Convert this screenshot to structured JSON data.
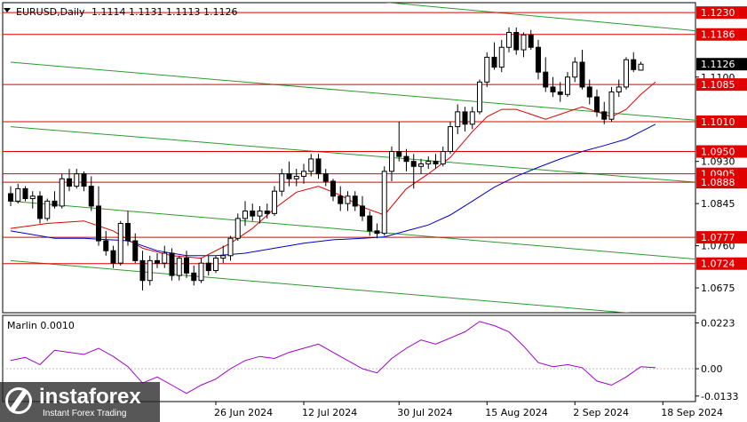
{
  "chart_data": {
    "type": "candlestick",
    "symbol": "EURUSD,Daily",
    "ohlc_values": "1.1114 1.1131 1.1113 1.1126",
    "price_axis": {
      "range": [
        1.0625,
        1.125
      ],
      "ticks": [
        "1.0675",
        "1.0760",
        "1.0845",
        "1.0930",
        "1.1100"
      ]
    },
    "levels": [
      {
        "value": 1.123,
        "label": "1.1230"
      },
      {
        "value": 1.1186,
        "label": "1.1186"
      },
      {
        "value": 1.1085,
        "label": "1.1085"
      },
      {
        "value": 1.101,
        "label": "1.1010"
      },
      {
        "value": 1.095,
        "label": "1.0950"
      },
      {
        "value": 1.0905,
        "label": "1.0905"
      },
      {
        "value": 1.0888,
        "label": "1.0888"
      },
      {
        "value": 1.0777,
        "label": "1.0777"
      },
      {
        "value": 1.0724,
        "label": "1.0724"
      }
    ],
    "current_price": {
      "value": 1.1126,
      "label": "1.1126"
    },
    "x_labels": [
      "26 Jun 2024",
      "12 Jul 2024",
      "30 Jul 2024",
      "15 Aug 2024",
      "2 Sep 2024",
      "18 Sep 2024"
    ],
    "x_label_bars": [
      28,
      40,
      53,
      65,
      77,
      89
    ],
    "candles": [
      [
        1.0865,
        1.088,
        1.084,
        1.085
      ],
      [
        1.085,
        1.0885,
        1.0845,
        1.0875
      ],
      [
        1.0875,
        1.088,
        1.085,
        1.0855
      ],
      [
        1.0855,
        1.087,
        1.0835,
        1.086
      ],
      [
        1.086,
        1.087,
        1.0805,
        1.0815
      ],
      [
        1.0815,
        1.0855,
        1.081,
        1.085
      ],
      [
        1.085,
        1.087,
        1.0835,
        1.084
      ],
      [
        1.084,
        1.0905,
        1.0835,
        1.0895
      ],
      [
        1.0895,
        1.0915,
        1.087,
        1.088
      ],
      [
        1.088,
        1.0915,
        1.0875,
        1.0905
      ],
      [
        1.0905,
        1.091,
        1.087,
        1.088
      ],
      [
        1.088,
        1.09,
        1.083,
        1.084
      ],
      [
        1.084,
        1.088,
        1.076,
        1.077
      ],
      [
        1.077,
        1.079,
        1.074,
        1.075
      ],
      [
        1.075,
        1.076,
        1.0715,
        1.0725
      ],
      [
        1.0725,
        1.081,
        1.072,
        1.0805
      ],
      [
        1.0805,
        1.083,
        1.076,
        1.077
      ],
      [
        1.077,
        1.0785,
        1.0725,
        1.073
      ],
      [
        1.073,
        1.075,
        1.067,
        1.069
      ],
      [
        1.069,
        1.074,
        1.068,
        1.073
      ],
      [
        1.073,
        1.0745,
        1.0715,
        1.0725
      ],
      [
        1.0725,
        1.076,
        1.0715,
        1.0745
      ],
      [
        1.0745,
        1.0755,
        1.069,
        1.07
      ],
      [
        1.07,
        1.074,
        1.069,
        1.0735
      ],
      [
        1.0735,
        1.075,
        1.0695,
        1.0705
      ],
      [
        1.0705,
        1.072,
        1.068,
        1.069
      ],
      [
        1.069,
        1.0735,
        1.0685,
        1.0725
      ],
      [
        1.0725,
        1.074,
        1.07,
        1.071
      ],
      [
        1.071,
        1.074,
        1.0705,
        1.0735
      ],
      [
        1.0735,
        1.076,
        1.0725,
        1.074
      ],
      [
        1.074,
        1.078,
        1.073,
        1.0775
      ],
      [
        1.0775,
        1.0825,
        1.077,
        1.0815
      ],
      [
        1.0815,
        1.085,
        1.08,
        1.083
      ],
      [
        1.083,
        1.0845,
        1.081,
        1.082
      ],
      [
        1.082,
        1.084,
        1.0805,
        1.083
      ],
      [
        1.083,
        1.0845,
        1.0815,
        1.0825
      ],
      [
        1.0825,
        1.088,
        1.082,
        1.087
      ],
      [
        1.087,
        1.0915,
        1.086,
        1.0905
      ],
      [
        1.0905,
        1.093,
        1.088,
        1.0895
      ],
      [
        1.0895,
        1.0915,
        1.088,
        1.09
      ],
      [
        1.09,
        1.0925,
        1.0885,
        1.091
      ],
      [
        1.091,
        1.0945,
        1.09,
        1.0935
      ],
      [
        1.0935,
        1.0945,
        1.0895,
        1.0905
      ],
      [
        1.0905,
        1.0915,
        1.088,
        1.089
      ],
      [
        1.089,
        1.0895,
        1.085,
        1.086
      ],
      [
        1.086,
        1.088,
        1.083,
        1.0845
      ],
      [
        1.0845,
        1.087,
        1.083,
        1.086
      ],
      [
        1.086,
        1.087,
        1.083,
        1.084
      ],
      [
        1.084,
        1.086,
        1.081,
        1.082
      ],
      [
        1.082,
        1.083,
        1.078,
        1.079
      ],
      [
        1.079,
        1.0805,
        1.0775,
        1.0785
      ],
      [
        1.0785,
        1.092,
        1.078,
        1.091
      ],
      [
        1.091,
        1.096,
        1.089,
        1.095
      ],
      [
        1.095,
        1.101,
        1.093,
        1.094
      ],
      [
        1.094,
        1.0955,
        1.091,
        1.093
      ],
      [
        1.093,
        1.0945,
        1.0875,
        1.092
      ],
      [
        1.092,
        1.0935,
        1.0905,
        1.0925
      ],
      [
        1.0925,
        1.094,
        1.0915,
        1.093
      ],
      [
        1.093,
        1.0945,
        1.0915,
        1.0925
      ],
      [
        1.0925,
        1.096,
        1.092,
        1.095
      ],
      [
        1.095,
        1.101,
        1.0945,
        1.1
      ],
      [
        1.1,
        1.1045,
        1.0985,
        1.103
      ],
      [
        1.103,
        1.104,
        1.099,
        1.1005
      ],
      [
        1.1005,
        1.104,
        1.0995,
        1.103
      ],
      [
        1.103,
        1.1095,
        1.1025,
        1.109
      ],
      [
        1.109,
        1.115,
        1.108,
        1.114
      ],
      [
        1.114,
        1.117,
        1.1115,
        1.112
      ],
      [
        1.112,
        1.1175,
        1.111,
        1.116
      ],
      [
        1.116,
        1.12,
        1.115,
        1.119
      ],
      [
        1.119,
        1.12,
        1.1145,
        1.1155
      ],
      [
        1.1155,
        1.119,
        1.114,
        1.1185
      ],
      [
        1.1185,
        1.1195,
        1.1155,
        1.116
      ],
      [
        1.116,
        1.1175,
        1.1095,
        1.111
      ],
      [
        1.111,
        1.114,
        1.107,
        1.108
      ],
      [
        1.108,
        1.11,
        1.106,
        1.107
      ],
      [
        1.107,
        1.109,
        1.105,
        1.1065
      ],
      [
        1.1065,
        1.111,
        1.106,
        1.11
      ],
      [
        1.11,
        1.114,
        1.109,
        1.113
      ],
      [
        1.113,
        1.1155,
        1.1075,
        1.108
      ],
      [
        1.108,
        1.1095,
        1.1045,
        1.106
      ],
      [
        1.106,
        1.1075,
        1.102,
        1.103
      ],
      [
        1.103,
        1.105,
        1.1005,
        1.1015
      ],
      [
        1.1015,
        1.108,
        1.101,
        1.107
      ],
      [
        1.107,
        1.1095,
        1.106,
        1.108
      ],
      [
        1.108,
        1.114,
        1.1075,
        1.1135
      ],
      [
        1.1135,
        1.115,
        1.111,
        1.1115
      ],
      [
        1.1114,
        1.1131,
        1.1113,
        1.1126
      ]
    ],
    "ma_fast": [
      [
        0,
        1.0795
      ],
      [
        5,
        1.0805
      ],
      [
        10,
        1.081
      ],
      [
        14,
        1.079
      ],
      [
        18,
        1.0755
      ],
      [
        22,
        1.074
      ],
      [
        26,
        1.0735
      ],
      [
        30,
        1.0765
      ],
      [
        33,
        1.0795
      ],
      [
        36,
        1.0835
      ],
      [
        39,
        1.0868
      ],
      [
        42,
        1.088
      ],
      [
        45,
        1.0862
      ],
      [
        48,
        1.0838
      ],
      [
        51,
        1.0822
      ],
      [
        54,
        1.0875
      ],
      [
        57,
        1.0905
      ],
      [
        60,
        1.0938
      ],
      [
        63,
        1.099
      ],
      [
        65,
        1.102
      ],
      [
        67,
        1.1035
      ],
      [
        69,
        1.1035
      ],
      [
        71,
        1.1025
      ],
      [
        73,
        1.1015
      ],
      [
        76,
        1.103
      ],
      [
        78,
        1.104
      ],
      [
        80,
        1.103
      ],
      [
        82,
        1.102
      ],
      [
        84,
        1.1035
      ],
      [
        86,
        1.1065
      ],
      [
        88,
        1.109
      ]
    ],
    "ma_slow": [
      [
        0,
        1.079
      ],
      [
        6,
        1.0775
      ],
      [
        10,
        1.0775
      ],
      [
        16,
        1.077
      ],
      [
        20,
        1.075
      ],
      [
        24,
        1.074
      ],
      [
        28,
        1.074
      ],
      [
        32,
        1.0745
      ],
      [
        36,
        1.0755
      ],
      [
        40,
        1.0765
      ],
      [
        44,
        1.0772
      ],
      [
        48,
        1.0775
      ],
      [
        51,
        1.0778
      ],
      [
        54,
        1.079
      ],
      [
        57,
        1.0802
      ],
      [
        60,
        1.0822
      ],
      [
        63,
        1.085
      ],
      [
        66,
        1.0878
      ],
      [
        69,
        1.09
      ],
      [
        72,
        1.0918
      ],
      [
        75,
        1.0935
      ],
      [
        78,
        1.095
      ],
      [
        81,
        1.0962
      ],
      [
        84,
        1.0975
      ],
      [
        86,
        1.099
      ],
      [
        88,
        1.1005
      ]
    ],
    "oscillator": {
      "label": "Marlin 0.0010",
      "ticks": [
        "0.0223",
        "0.00",
        "-0.0133"
      ],
      "range": [
        -0.016,
        0.026
      ],
      "values": [
        [
          0,
          0.004
        ],
        [
          2,
          0.0055
        ],
        [
          4,
          0.002
        ],
        [
          6,
          0.009
        ],
        [
          8,
          0.008
        ],
        [
          10,
          0.007
        ],
        [
          12,
          0.01
        ],
        [
          14,
          0.006
        ],
        [
          16,
          0.001
        ],
        [
          18,
          -0.007
        ],
        [
          20,
          -0.004
        ],
        [
          22,
          -0.008
        ],
        [
          24,
          -0.012
        ],
        [
          26,
          -0.008
        ],
        [
          28,
          -0.005
        ],
        [
          30,
          0.0
        ],
        [
          32,
          0.004
        ],
        [
          34,
          0.006
        ],
        [
          36,
          0.005
        ],
        [
          38,
          0.008
        ],
        [
          40,
          0.01
        ],
        [
          42,
          0.012
        ],
        [
          44,
          0.008
        ],
        [
          46,
          0.004
        ],
        [
          48,
          0.0
        ],
        [
          50,
          -0.002
        ],
        [
          52,
          0.005
        ],
        [
          54,
          0.01
        ],
        [
          56,
          0.014
        ],
        [
          58,
          0.012
        ],
        [
          60,
          0.015
        ],
        [
          62,
          0.018
        ],
        [
          64,
          0.023
        ],
        [
          66,
          0.021
        ],
        [
          68,
          0.018
        ],
        [
          70,
          0.011
        ],
        [
          72,
          0.003
        ],
        [
          74,
          0.001
        ],
        [
          76,
          0.002
        ],
        [
          78,
          0.0005
        ],
        [
          80,
          -0.006
        ],
        [
          82,
          -0.008
        ],
        [
          84,
          -0.004
        ],
        [
          86,
          0.001
        ],
        [
          88,
          0.0005
        ]
      ]
    },
    "channel_lines": [
      {
        "p1": [
          0,
          1.132
        ],
        "p2": [
          96,
          1.119
        ]
      },
      {
        "p1": [
          0,
          1.113
        ],
        "p2": [
          96,
          1.101
        ]
      },
      {
        "p1": [
          0,
          1.1
        ],
        "p2": [
          96,
          1.0885
        ]
      },
      {
        "p1": [
          0,
          1.085
        ],
        "p2": [
          96,
          1.073
        ]
      },
      {
        "p1": [
          0,
          1.073
        ],
        "p2": [
          96,
          1.061
        ]
      }
    ],
    "colors": {
      "bull": "#ffffff",
      "bear": "#000000",
      "level": "#e00000",
      "channel": "#2e9a2e",
      "ma_fast": "#e00000",
      "ma_slow": "#0000cc",
      "oscillator": "#a000c8"
    }
  },
  "watermark": {
    "brand": "instaforex",
    "tagline": "Instant Forex Trading"
  }
}
